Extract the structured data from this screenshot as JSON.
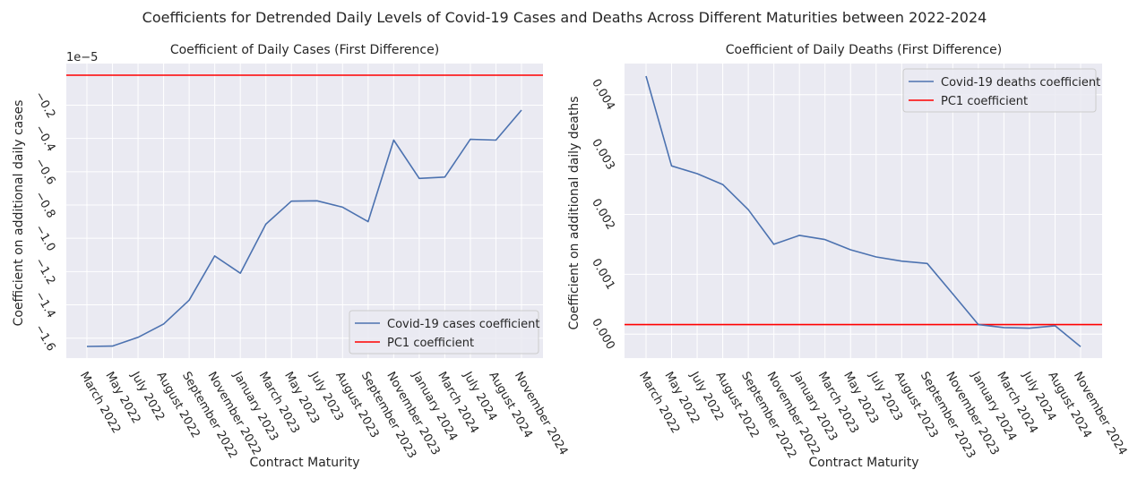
{
  "figure": {
    "title": "Coefficients for Detrended Daily Levels of Covid-19 Cases and Deaths Across Different Maturities between 2022-2024"
  },
  "colors": {
    "background": "#eaeaf2",
    "grid": "#ffffff",
    "series_line": "#4c72b0",
    "pc1_line": "#ff0000",
    "text": "#262626"
  },
  "chart_data": [
    {
      "type": "line",
      "title": "Coefficient of Daily Cases (First Difference)",
      "xlabel": "Contract Maturity",
      "ylabel": "Coefficient on additional daily cases",
      "offset_text": "1e−5",
      "categories": [
        "March 2022",
        "May 2022",
        "July 2022",
        "August 2022",
        "September 2022",
        "November 2022",
        "January 2023",
        "March 2023",
        "May 2023",
        "July 2023",
        "August 2023",
        "September 2023",
        "November 2023",
        "January 2024",
        "March 2024",
        "July 2024",
        "August 2024",
        "November 2024"
      ],
      "series": [
        {
          "name": "Covid-19 cases coefficient",
          "values": [
            -1.65,
            -1.648,
            -1.595,
            -1.515,
            -1.372,
            -1.106,
            -1.21,
            -0.915,
            -0.777,
            -0.775,
            -0.813,
            -0.9,
            -0.41,
            -0.64,
            -0.632,
            -0.405,
            -0.41,
            -0.23
          ]
        },
        {
          "name": "PC1 coefficient",
          "constant": -0.02
        }
      ],
      "ylim": [
        -1.72,
        0.05
      ],
      "yticks": [
        -1.6,
        -1.4,
        -1.2,
        -1.0,
        -0.8,
        -0.6,
        -0.4,
        -0.2
      ],
      "ytick_labels": [
        "−1.6",
        "−1.4",
        "−1.2",
        "−1.0",
        "−0.8",
        "−0.6",
        "−0.4",
        "−0.2"
      ],
      "grid": true,
      "legend_position": "lower-right"
    },
    {
      "type": "line",
      "title": "Coefficient of Daily Deaths (First Difference)",
      "xlabel": "Contract Maturity",
      "ylabel": "Coefficient on additional daily deaths",
      "categories": [
        "March 2022",
        "May 2022",
        "July 2022",
        "August 2022",
        "September 2022",
        "November 2022",
        "January 2023",
        "March 2023",
        "May 2023",
        "July 2023",
        "August 2023",
        "September 2023",
        "November 2023",
        "January 2024",
        "March 2024",
        "July 2024",
        "August 2024",
        "November 2024"
      ],
      "series": [
        {
          "name": "Covid-19 deaths coefficient",
          "values": [
            0.00431,
            0.00281,
            0.00268,
            0.0025,
            0.00208,
            0.0015,
            0.00165,
            0.00158,
            0.00141,
            0.00129,
            0.00122,
            0.00118,
            0.00067,
            0.00016,
            0.00011,
            0.0001,
            0.00014,
            -0.00021
          ]
        },
        {
          "name": "PC1 coefficient",
          "constant": 0.00016
        }
      ],
      "ylim": [
        -0.0004,
        0.00452
      ],
      "yticks": [
        0.0,
        0.001,
        0.002,
        0.003,
        0.004
      ],
      "ytick_labels": [
        "0.000",
        "0.001",
        "0.002",
        "0.003",
        "0.004"
      ],
      "grid": true,
      "legend_position": "upper-right"
    }
  ]
}
